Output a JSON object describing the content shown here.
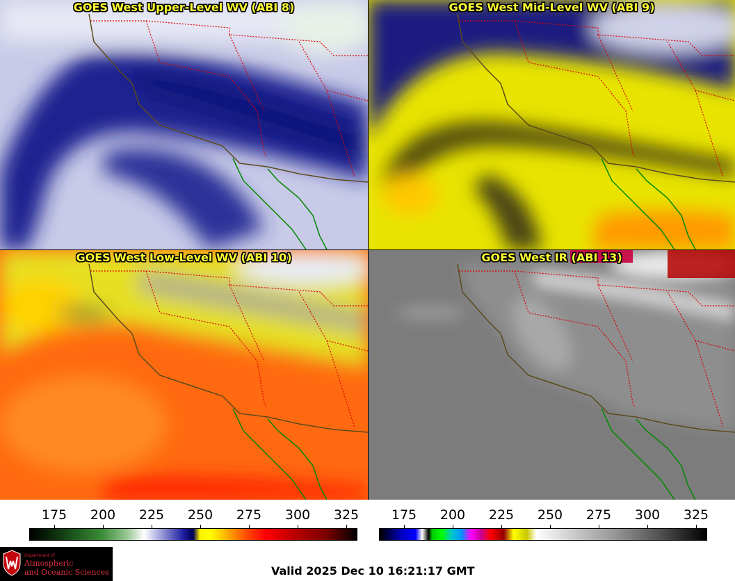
{
  "panels": [
    {
      "id": "upper-wv",
      "title": "GOES West Upper-Level WV (ABI 8)"
    },
    {
      "id": "mid-wv",
      "title": "GOES West Mid-Level WV (ABI 9)"
    },
    {
      "id": "low-wv",
      "title": "GOES West Low-Level WV (ABI 10)"
    },
    {
      "id": "ir",
      "title": "GOES West IR (ABI 13)"
    }
  ],
  "colorbars": {
    "wv": {
      "ticks": [
        "175",
        "200",
        "225",
        "250",
        "275",
        "300",
        "325"
      ]
    },
    "ir": {
      "ticks": [
        "175",
        "200",
        "225",
        "250",
        "275",
        "300",
        "325"
      ]
    }
  },
  "colors": {
    "state_borders": "#dd0000",
    "coastline": "#5c4a1c",
    "mexico_coast": "#008800",
    "title_text": "#ffff33"
  },
  "logo": {
    "dept": "Department of",
    "line1": "Atmospheric",
    "line2": "and Oceanic Sciences"
  },
  "footer": {
    "valid": "Valid 2025 Dec 10 16:21:17 GMT"
  }
}
